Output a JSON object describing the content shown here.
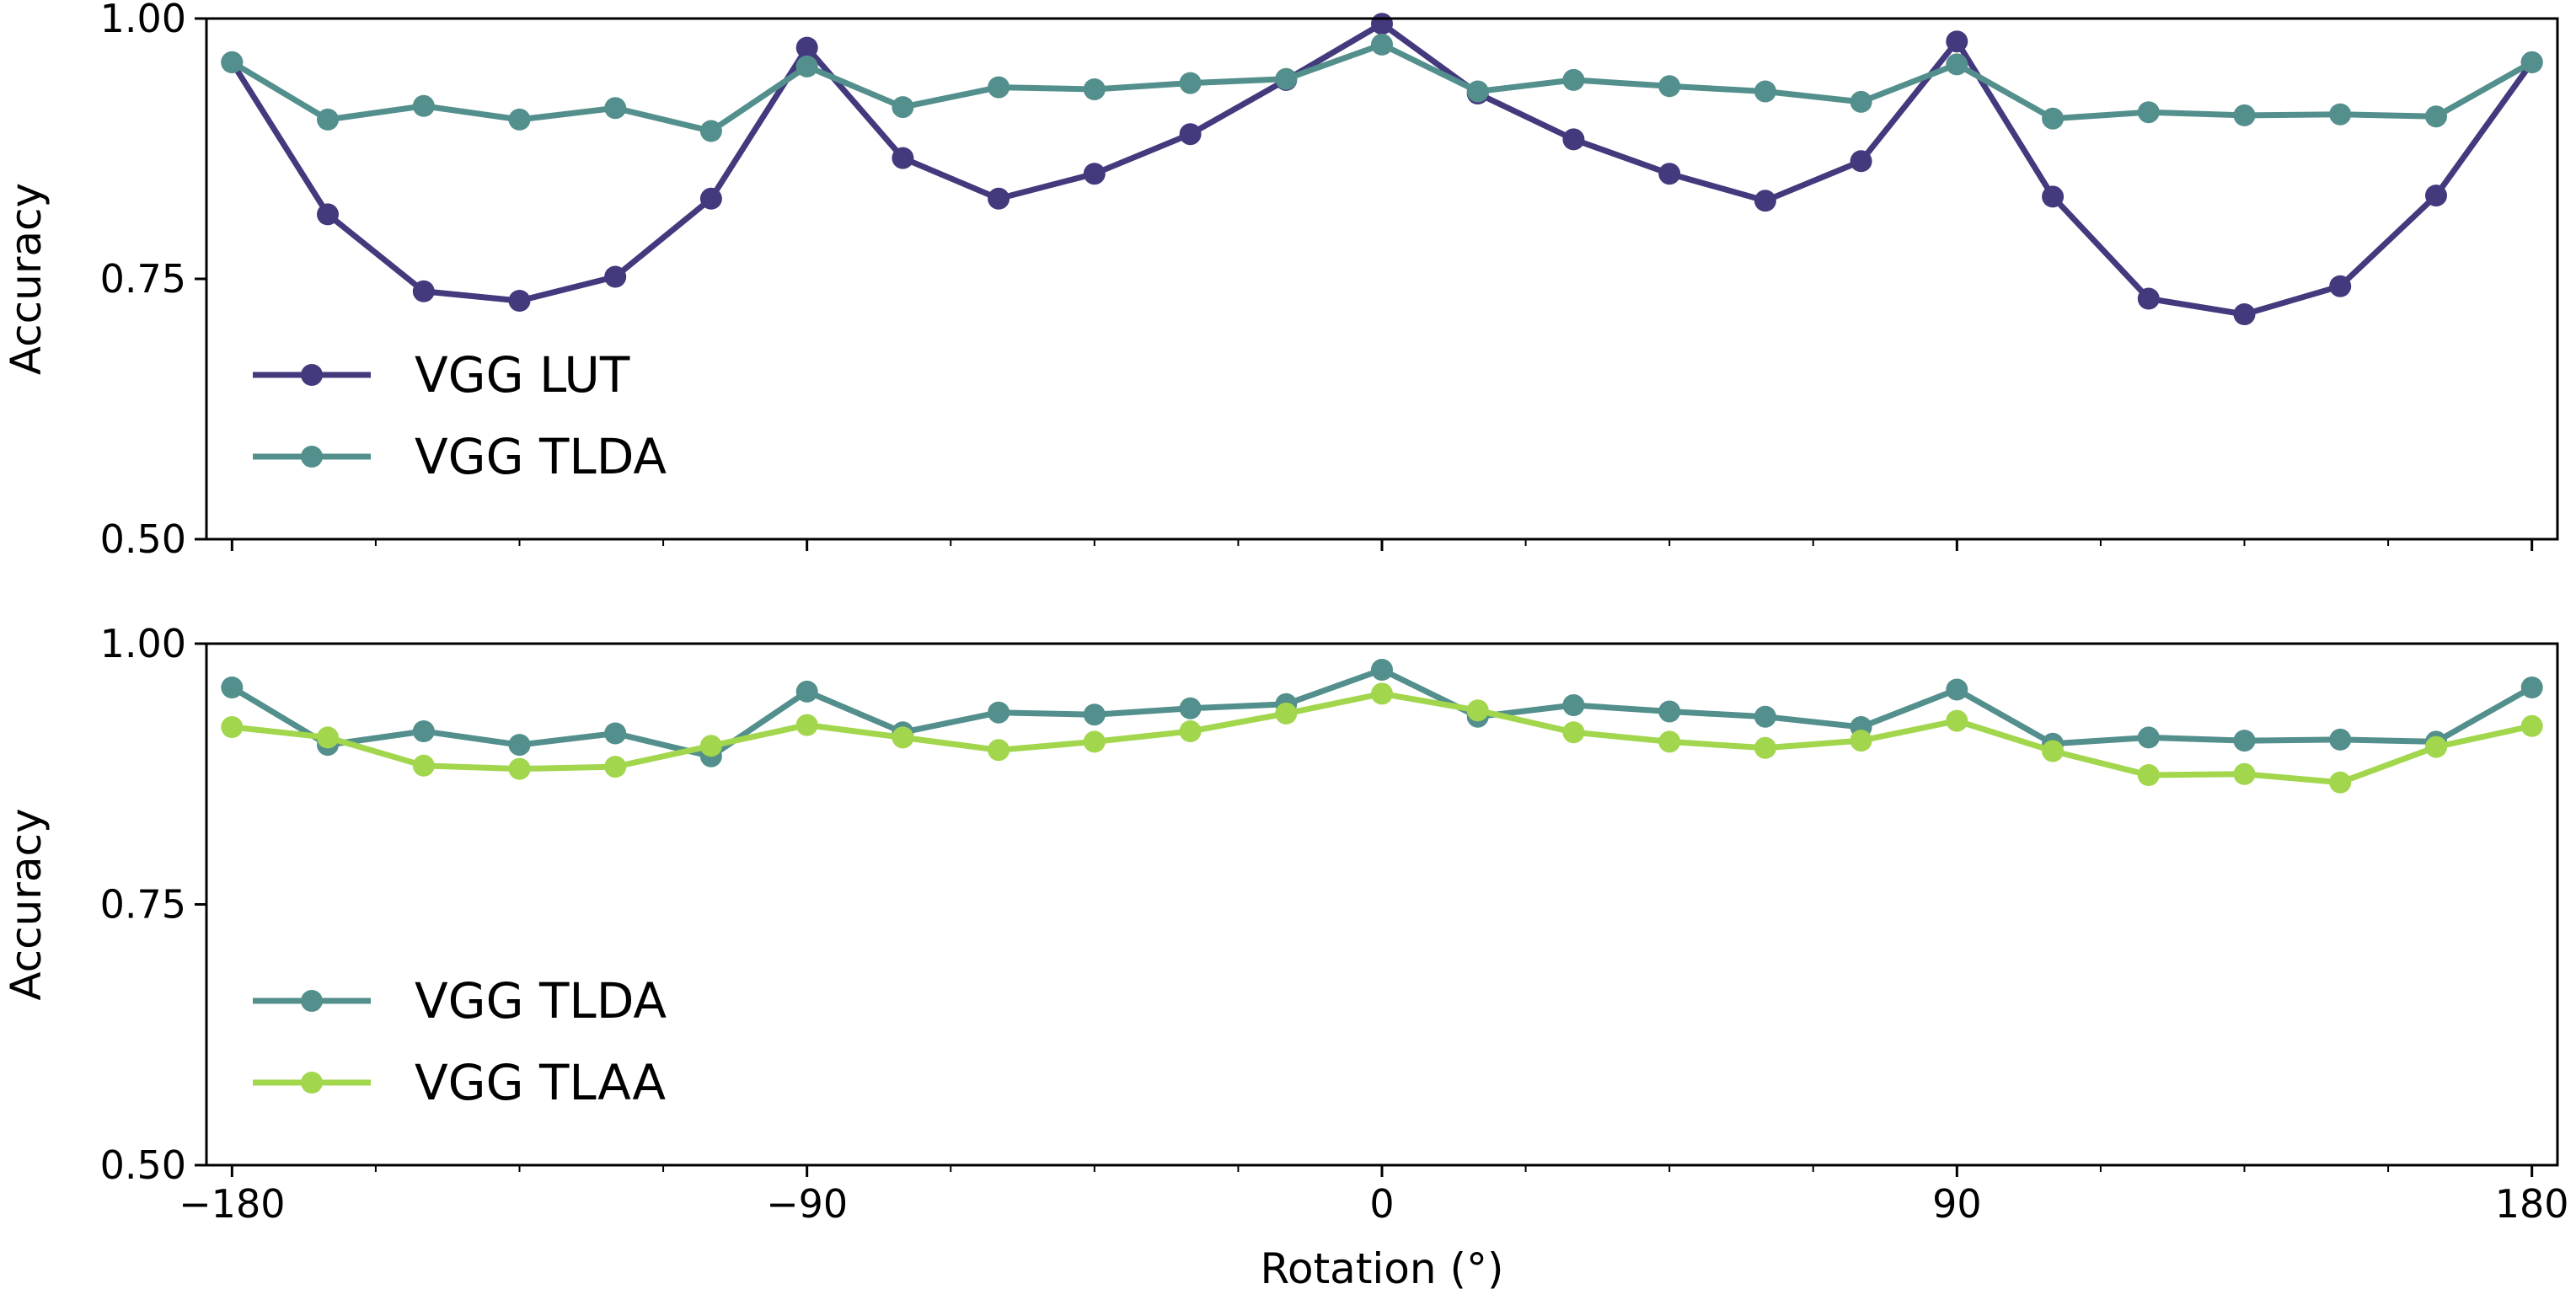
{
  "chart_data": [
    {
      "type": "line",
      "panel": "top",
      "ylabel": "Accuracy",
      "xlabel": "",
      "xlim": [
        -184,
        184
      ],
      "ylim": [
        0.5,
        1.0
      ],
      "yticks": [
        0.5,
        0.75,
        1.0
      ],
      "ytick_labels": [
        "0.50",
        "0.75",
        "1.00"
      ],
      "xticks": [
        -180,
        -90,
        0,
        90,
        180
      ],
      "xtick_labels": [],
      "legend_position": "lower-left",
      "x": [
        -180,
        -165,
        -150,
        -135,
        -120,
        -105,
        -90,
        -75,
        -60,
        -45,
        -30,
        -15,
        0,
        15,
        30,
        45,
        60,
        75,
        90,
        105,
        120,
        135,
        150,
        165,
        180
      ],
      "series": [
        {
          "name": "VGG LUT",
          "color": "#433a7e",
          "values": [
            0.958,
            0.812,
            0.738,
            0.729,
            0.752,
            0.827,
            0.972,
            0.866,
            0.827,
            0.851,
            0.889,
            0.941,
            0.995,
            0.928,
            0.884,
            0.851,
            0.825,
            0.863,
            0.978,
            0.829,
            0.731,
            0.716,
            0.743,
            0.83,
            0.958
          ]
        },
        {
          "name": "VGG TLDA",
          "color": "#538f8c",
          "values": [
            0.958,
            0.903,
            0.916,
            0.903,
            0.914,
            0.892,
            0.954,
            0.915,
            0.934,
            0.932,
            0.938,
            0.942,
            0.975,
            0.93,
            0.941,
            0.935,
            0.93,
            0.92,
            0.956,
            0.904,
            0.91,
            0.907,
            0.908,
            0.906,
            0.958
          ]
        }
      ]
    },
    {
      "type": "line",
      "panel": "bottom",
      "ylabel": "Accuracy",
      "xlabel": "Rotation (°)",
      "xlim": [
        -184,
        184
      ],
      "ylim": [
        0.5,
        1.0
      ],
      "yticks": [
        0.5,
        0.75,
        1.0
      ],
      "ytick_labels": [
        "0.50",
        "0.75",
        "1.00"
      ],
      "xticks": [
        -180,
        -90,
        0,
        90,
        180
      ],
      "xtick_labels": [
        "−180",
        "−90",
        "0",
        "90",
        "180"
      ],
      "legend_position": "lower-left",
      "x": [
        -180,
        -165,
        -150,
        -135,
        -120,
        -105,
        -90,
        -75,
        -60,
        -45,
        -30,
        -15,
        0,
        15,
        30,
        45,
        60,
        75,
        90,
        105,
        120,
        135,
        150,
        165,
        180
      ],
      "series": [
        {
          "name": "VGG TLDA",
          "color": "#538f8c",
          "values": [
            0.958,
            0.903,
            0.916,
            0.903,
            0.914,
            0.892,
            0.954,
            0.915,
            0.934,
            0.932,
            0.938,
            0.942,
            0.975,
            0.93,
            0.941,
            0.935,
            0.93,
            0.92,
            0.956,
            0.904,
            0.91,
            0.907,
            0.908,
            0.906,
            0.958
          ]
        },
        {
          "name": "VGG TLAA",
          "color": "#a2d64d",
          "values": [
            0.92,
            0.91,
            0.883,
            0.88,
            0.882,
            0.902,
            0.922,
            0.91,
            0.898,
            0.906,
            0.916,
            0.933,
            0.952,
            0.936,
            0.915,
            0.906,
            0.9,
            0.907,
            0.926,
            0.897,
            0.874,
            0.875,
            0.867,
            0.901,
            0.921
          ]
        }
      ]
    }
  ]
}
